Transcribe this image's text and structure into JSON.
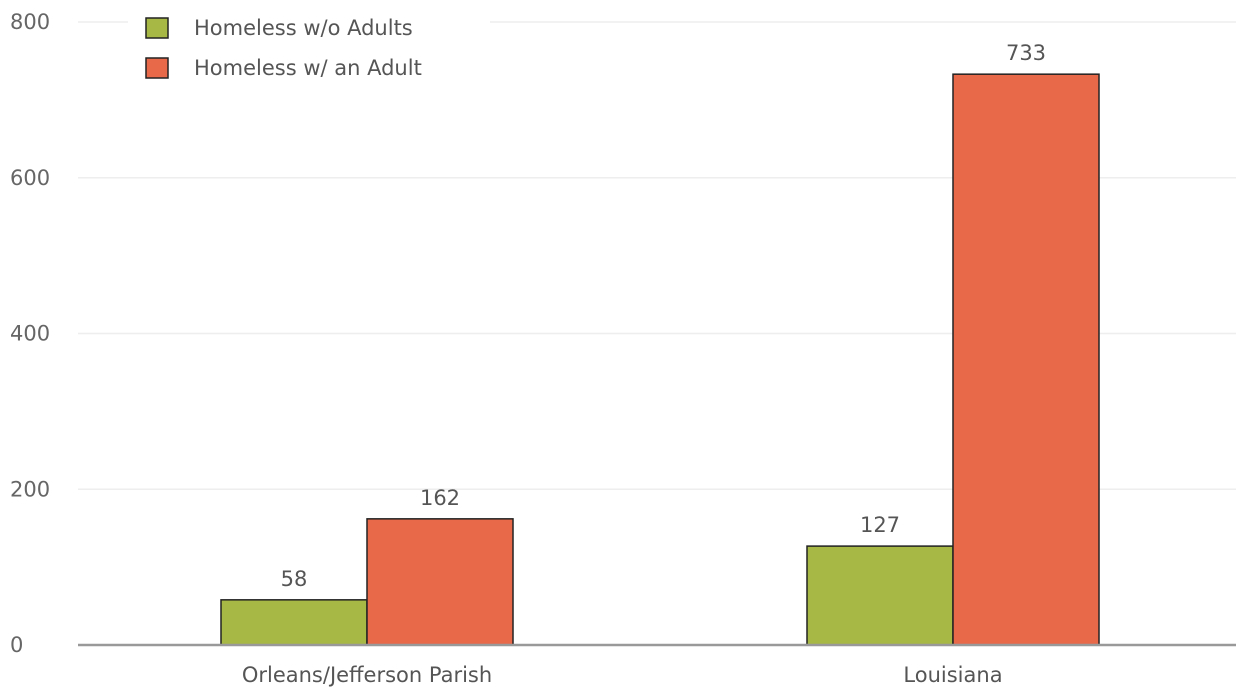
{
  "chart_data": {
    "type": "bar",
    "title": "",
    "xlabel": "",
    "ylabel": "",
    "categories": [
      "Orleans/Jefferson Parish",
      "Louisiana"
    ],
    "series": [
      {
        "name": "Homeless w/o Adults",
        "values": [
          58,
          127
        ],
        "color": "#a8b845"
      },
      {
        "name": "Homeless w/ an Adult",
        "values": [
          162,
          733
        ],
        "color": "#e8684a"
      }
    ],
    "ylim": [
      0,
      800
    ],
    "yticks": [
      0,
      200,
      400,
      600,
      800
    ],
    "grid": true,
    "legend_position": "top-left",
    "data_labels": true,
    "colors": {
      "gridline": "#eeeeee",
      "baseline": "#999999",
      "bar_outline": "#222222"
    }
  }
}
